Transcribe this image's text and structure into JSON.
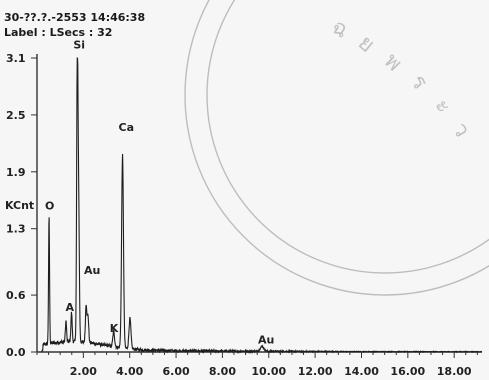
{
  "header": {
    "timestamp": "30-??.?.-2553 14:46:38",
    "label_text": "Label :",
    "lsecs_text": "LSecs : 32"
  },
  "chart_data": {
    "type": "line",
    "ylabel": "KCnt",
    "xlim": [
      0,
      19.2
    ],
    "ylim": [
      0,
      3.1
    ],
    "xticks": [
      "2.00",
      "4.00",
      "6.00",
      "8.00",
      "10.00",
      "12.00",
      "14.00",
      "16.00",
      "18.00"
    ],
    "yticks": [
      "0.0",
      "0.6",
      "1.3",
      "1.9",
      "2.5",
      "3.1"
    ],
    "grid": false,
    "peaks": [
      {
        "x": 0.52,
        "y": 1.34
      },
      {
        "x": 1.25,
        "y": 0.22
      },
      {
        "x": 1.49,
        "y": 0.31
      },
      {
        "x": 1.74,
        "y": 3.1
      },
      {
        "x": 1.8,
        "y": 1.32
      },
      {
        "x": 2.12,
        "y": 0.4
      },
      {
        "x": 2.2,
        "y": 0.28
      },
      {
        "x": 3.31,
        "y": 0.16
      },
      {
        "x": 3.69,
        "y": 2.03
      },
      {
        "x": 4.01,
        "y": 0.32
      },
      {
        "x": 9.71,
        "y": 0.05
      }
    ],
    "annotations": [
      {
        "text": "O",
        "x": 0.52,
        "y": 1.5
      },
      {
        "text": "Si",
        "x": 1.74,
        "y": 3.2
      },
      {
        "text": "Ca",
        "x": 3.69,
        "y": 2.33
      },
      {
        "text": "Au",
        "x": 2.2,
        "y": 0.82
      },
      {
        "text": "A",
        "x": 1.4,
        "y": 0.43
      },
      {
        "text": "K",
        "x": 3.31,
        "y": 0.21
      },
      {
        "text": "Au",
        "x": 9.71,
        "y": 0.09
      }
    ]
  },
  "colors": {
    "trace": "#1e1e1e",
    "text": "#222222",
    "axis": "#333333",
    "watermark": "#b5b5b5",
    "background": "#f6f6f6"
  }
}
